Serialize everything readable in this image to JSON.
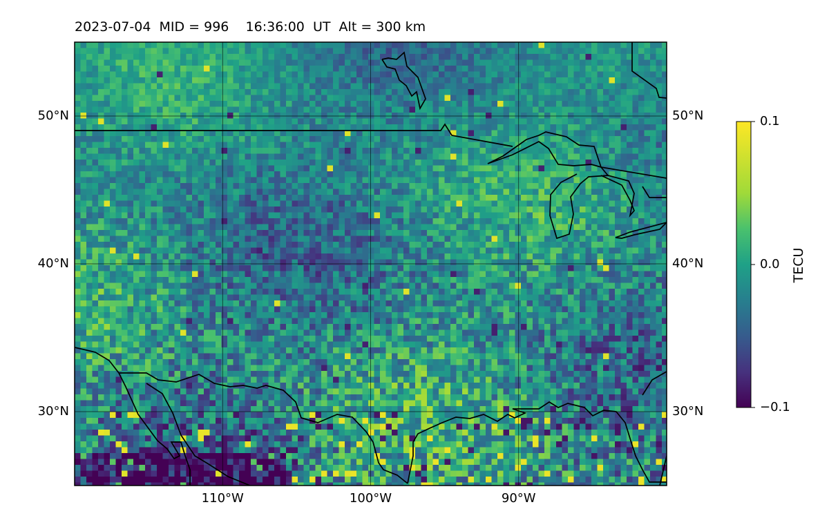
{
  "title": "2023-07-04  MID = 996    16:36:00  UT  Alt = 300 km",
  "map": {
    "projection": "plate-carree",
    "lon_range": [
      -120,
      -80
    ],
    "lat_range": [
      25,
      55
    ],
    "gridlines": true,
    "lon_ticks": [
      {
        "value": -110,
        "label": "110°W"
      },
      {
        "value": -100,
        "label": "100°W"
      },
      {
        "value": -90,
        "label": "90°W"
      }
    ],
    "lat_ticks": [
      {
        "value": 50,
        "label": "50°N"
      },
      {
        "value": 40,
        "label": "40°N"
      },
      {
        "value": 30,
        "label": "30°N"
      }
    ],
    "field": "TEC perturbation heatmap",
    "colormap": "viridis"
  },
  "colorbar": {
    "label": "TECU",
    "min": -0.1,
    "max": 0.1,
    "ticks": [
      {
        "value": 0.1,
        "label": "0.1"
      },
      {
        "value": 0.0,
        "label": "0.0"
      },
      {
        "value": -0.1,
        "label": "−0.1"
      }
    ]
  },
  "colors": {
    "viridis_low": "#440154",
    "viridis_mid": "#21908d",
    "viridis_high": "#fde725",
    "coastline": "#000000"
  }
}
